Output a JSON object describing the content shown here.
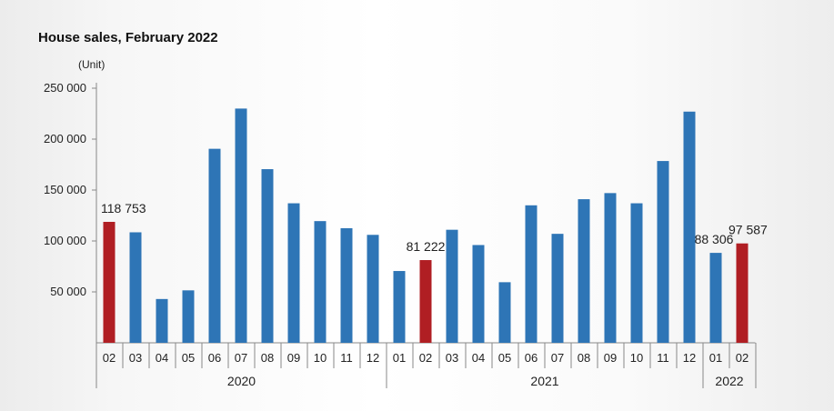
{
  "chart_data": {
    "type": "bar",
    "title": "House sales, February 2022",
    "ylabel": "(Unit)",
    "ylim": [
      0,
      250000
    ],
    "yticks": [
      50000,
      100000,
      150000,
      200000,
      250000
    ],
    "ytick_labels": [
      "50 000",
      "100 000",
      "150 000",
      "200 000",
      "250 000"
    ],
    "categories": [
      "02",
      "03",
      "04",
      "05",
      "06",
      "07",
      "08",
      "09",
      "10",
      "11",
      "12",
      "01",
      "02",
      "03",
      "04",
      "05",
      "06",
      "07",
      "08",
      "09",
      "10",
      "11",
      "12",
      "01",
      "02"
    ],
    "years": [
      {
        "label": "2020",
        "start": 0,
        "end": 10
      },
      {
        "label": "2021",
        "start": 11,
        "end": 22
      },
      {
        "label": "2022",
        "start": 23,
        "end": 24
      }
    ],
    "values": [
      118753,
      108500,
      43000,
      51500,
      190500,
      230000,
      170500,
      137000,
      119500,
      112500,
      106000,
      70500,
      81222,
      111000,
      96000,
      59500,
      135000,
      107000,
      141000,
      147000,
      137000,
      178500,
      227000,
      88306,
      97587
    ],
    "highlight": [
      0,
      12,
      24
    ],
    "data_labels": [
      {
        "index": 0,
        "text": "118 753"
      },
      {
        "index": 12,
        "text": "81 222"
      },
      {
        "index": 23,
        "text": "88 306"
      },
      {
        "index": 24,
        "text": "97 587"
      }
    ],
    "colors": {
      "bar": "#2e75b6",
      "highlight": "#b01e23",
      "axis": "#888888"
    }
  }
}
